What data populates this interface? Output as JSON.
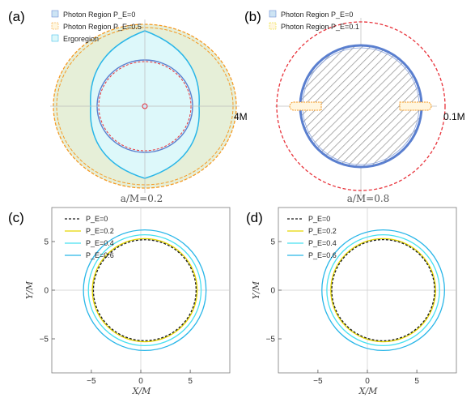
{
  "panels": {
    "a": {
      "label": "(a)",
      "scale_label": "4M",
      "legend": [
        "Photon Region P_E=0",
        "Photon Region P_E=0.5",
        "Ergoregion"
      ]
    },
    "b": {
      "label": "(b)",
      "scale_label": "0.1M",
      "legend": [
        "Photon Region P_E=0",
        "Photon Region P_E=0.1"
      ]
    },
    "c": {
      "label": "(c)",
      "title": "a/M=0.2",
      "xlabel": "X/M",
      "ylabel": "Y/M",
      "legend": [
        "P_E=0",
        "P_E=0.2",
        "P_E=0.4",
        "P_E=0.6"
      ]
    },
    "d": {
      "label": "(d)",
      "title": "a/M=0.8",
      "xlabel": "X/M",
      "ylabel": "Y/M",
      "legend": [
        "P_E=0",
        "P_E=0.2",
        "P_E=0.4",
        "P_E=0.6"
      ]
    }
  },
  "colors": {
    "dashed_black": "#1a1a1a",
    "yellow": "#e6d800",
    "cyan_light": "#48e0f0",
    "cyan": "#29b6e8",
    "orange_dashed": "#f59a23",
    "red_dashed": "#e8323a",
    "ergoregion_fill": "#ddf8fa",
    "photon_fill_outer": "#e6efd8",
    "shadow_fill": "#cde4f4",
    "blue_ring": "#5a7fcf"
  },
  "chart_data": [
    {
      "panel": "a",
      "type": "area",
      "series": [
        {
          "name": "Photon Region P_E=0"
        },
        {
          "name": "Photon Region P_E=0.5"
        },
        {
          "name": "Ergoregion"
        }
      ]
    },
    {
      "panel": "b",
      "type": "area",
      "series": [
        {
          "name": "Photon Region P_E=0"
        },
        {
          "name": "Photon Region P_E=0.1"
        }
      ]
    },
    {
      "panel": "c",
      "type": "line",
      "title": "a/M=0.2",
      "xlabel": "X/M",
      "ylabel": "Y/M",
      "xlim": [
        -9,
        9
      ],
      "ylim": [
        -8.5,
        8.5
      ],
      "xticks": [
        -5,
        0,
        5
      ],
      "yticks": [
        -5,
        0,
        5
      ],
      "series": [
        {
          "name": "P_E=0",
          "style": "dashed",
          "x_center": 0.4,
          "radius": 5.19
        },
        {
          "name": "P_E=0.2",
          "x_center": 0.4,
          "radius": 5.3
        },
        {
          "name": "P_E=0.4",
          "x_center": 0.4,
          "radius": 5.7
        },
        {
          "name": "P_E=0.6",
          "x_center": 0.4,
          "radius": 6.2
        }
      ]
    },
    {
      "panel": "d",
      "type": "line",
      "title": "a/M=0.8",
      "xlabel": "X/M",
      "ylabel": "Y/M",
      "xlim": [
        -9,
        9
      ],
      "ylim": [
        -8.5,
        8.5
      ],
      "xticks": [
        -5,
        0,
        5
      ],
      "yticks": [
        -5,
        0,
        5
      ],
      "series": [
        {
          "name": "P_E=0",
          "style": "dashed",
          "x_center": 1.6,
          "radius": 5.2
        },
        {
          "name": "P_E=0.2",
          "x_center": 1.6,
          "radius": 5.3
        },
        {
          "name": "P_E=0.4",
          "x_center": 1.6,
          "radius": 5.7
        },
        {
          "name": "P_E=0.6",
          "x_center": 1.6,
          "radius": 6.2
        }
      ]
    }
  ]
}
